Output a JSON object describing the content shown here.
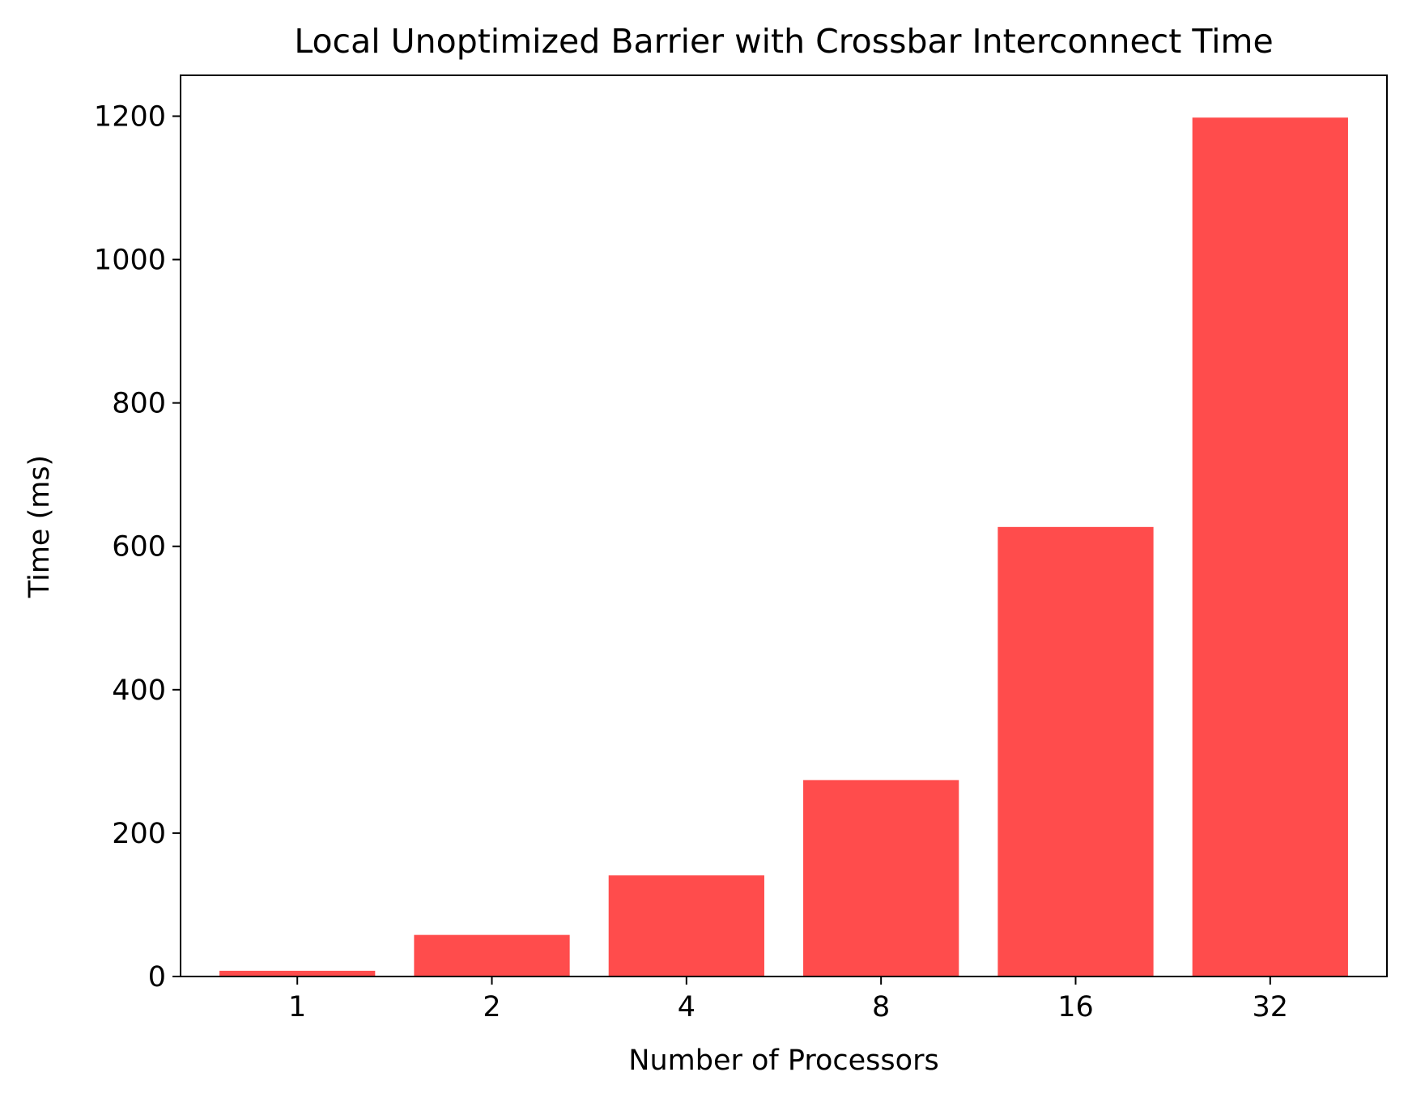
{
  "chart_data": {
    "type": "bar",
    "title": "Local Unoptimized Barrier with Crossbar Interconnect Time",
    "xlabel": "Number of Processors",
    "ylabel": "Time (ms)",
    "categories": [
      "1",
      "2",
      "4",
      "8",
      "16",
      "32"
    ],
    "values": [
      8,
      58,
      141,
      274,
      627,
      1198
    ],
    "ylim": [
      0,
      1257
    ],
    "yticks": [
      0,
      200,
      400,
      600,
      800,
      1000,
      1200
    ],
    "ytick_labels": [
      "0",
      "200",
      "400",
      "600",
      "800",
      "1000",
      "1200"
    ],
    "grid": false,
    "legend": "none",
    "bar_color": "#ff4c4c"
  }
}
